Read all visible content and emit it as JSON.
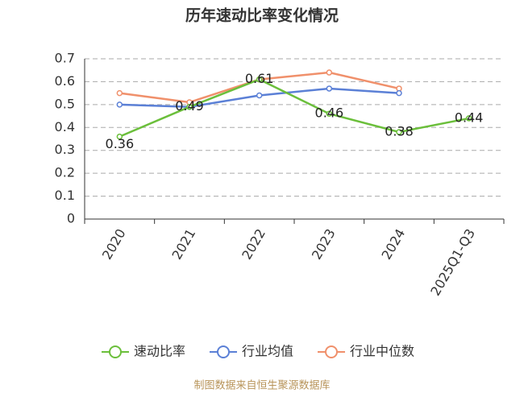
{
  "chart_data": {
    "type": "line",
    "title": "历年速动比率变化情况",
    "categories": [
      "2020",
      "2021",
      "2022",
      "2023",
      "2024",
      "2025Q1-Q3"
    ],
    "series": [
      {
        "name": "速动比率",
        "color": "#6bbf3b",
        "values": [
          0.36,
          0.49,
          0.61,
          0.46,
          0.38,
          0.44
        ],
        "labels": true
      },
      {
        "name": "行业均值",
        "color": "#5b80d6",
        "values": [
          0.5,
          0.49,
          0.54,
          0.57,
          0.55,
          null
        ]
      },
      {
        "name": "行业中位数",
        "color": "#f0906b",
        "values": [
          0.55,
          0.51,
          0.61,
          0.64,
          0.57,
          null
        ]
      }
    ],
    "ylim": [
      0,
      0.7
    ],
    "yticks": [
      0,
      0.1,
      0.2,
      0.3,
      0.4,
      0.5,
      0.6,
      0.7
    ],
    "grid": true,
    "source": "制图数据来自恒生聚源数据库"
  }
}
